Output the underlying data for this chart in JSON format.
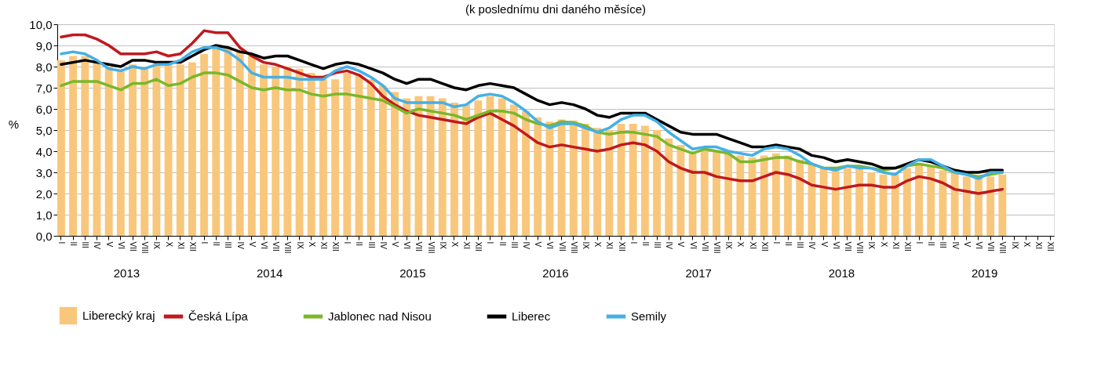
{
  "chart_data": {
    "type": "bar",
    "subtitle": "(k poslednímu dni daného měsíce)",
    "ylabel": "%",
    "categories": [
      "I",
      "II",
      "III",
      "IV",
      "V",
      "VI",
      "VII",
      "VIII",
      "IX",
      "X",
      "XI",
      "XII",
      "I",
      "II",
      "III",
      "IV",
      "V",
      "VI",
      "VII",
      "VIII",
      "IX",
      "X",
      "XI",
      "XII",
      "I",
      "II",
      "III",
      "IV",
      "V",
      "VI",
      "VII",
      "VIII",
      "IX",
      "X",
      "XI",
      "XII",
      "I",
      "II",
      "III",
      "IV",
      "V",
      "VI",
      "VII",
      "VIII",
      "IX",
      "X",
      "XI",
      "XII",
      "I",
      "II",
      "III",
      "IV",
      "V",
      "VI",
      "VII",
      "VIII",
      "IX",
      "X",
      "XI",
      "XII",
      "I",
      "II",
      "III",
      "IV",
      "V",
      "VI",
      "VII",
      "VIII",
      "IX",
      "X",
      "XI",
      "XII",
      "I",
      "II",
      "III",
      "IV",
      "V",
      "VI",
      "VII",
      "VIII",
      "IX",
      "X",
      "XI",
      "XII"
    ],
    "series": [
      {
        "name": "Liberecký kraj",
        "color": "#f9c77b",
        "values": [
          8.3,
          8.5,
          8.5,
          8.2,
          8.0,
          7.8,
          8.1,
          8.0,
          8.1,
          8.1,
          8.1,
          8.2,
          8.6,
          8.9,
          8.9,
          8.8,
          8.5,
          8.1,
          8.0,
          8.0,
          7.9,
          7.7,
          7.4,
          7.4,
          7.7,
          7.6,
          7.4,
          7.1,
          6.8,
          6.5,
          6.6,
          6.6,
          6.5,
          6.3,
          6.2,
          6.4,
          6.6,
          6.5,
          6.2,
          5.9,
          5.6,
          5.4,
          5.5,
          5.45,
          5.3,
          5.1,
          5.0,
          5.3,
          5.3,
          5.2,
          5.0,
          4.6,
          4.3,
          4.0,
          4.1,
          4.0,
          3.9,
          3.8,
          3.7,
          3.8,
          3.9,
          3.8,
          3.6,
          3.4,
          3.2,
          3.1,
          3.2,
          3.2,
          3.0,
          2.9,
          2.9,
          3.2,
          3.4,
          3.3,
          3.1,
          3.0,
          2.8,
          2.7,
          2.8,
          2.9,
          null,
          null,
          null,
          null
        ]
      },
      {
        "name": "Česká Lípa",
        "type": "line",
        "color": "#c0191e",
        "values": [
          9.4,
          9.5,
          9.5,
          9.3,
          9.0,
          8.6,
          8.6,
          8.6,
          8.7,
          8.5,
          8.6,
          9.1,
          9.7,
          9.6,
          9.6,
          8.9,
          8.5,
          8.2,
          8.1,
          7.9,
          7.7,
          7.5,
          7.5,
          7.7,
          7.8,
          7.6,
          7.2,
          6.6,
          6.2,
          5.9,
          5.7,
          5.6,
          5.5,
          5.4,
          5.3,
          5.6,
          5.8,
          5.5,
          5.2,
          4.8,
          4.4,
          4.2,
          4.3,
          4.2,
          4.1,
          4.0,
          4.1,
          4.3,
          4.4,
          4.3,
          4.0,
          3.5,
          3.2,
          3.0,
          3.0,
          2.8,
          2.7,
          2.6,
          2.6,
          2.8,
          3.0,
          2.9,
          2.7,
          2.4,
          2.3,
          2.2,
          2.3,
          2.4,
          2.4,
          2.3,
          2.3,
          2.6,
          2.8,
          2.7,
          2.5,
          2.2,
          2.1,
          2.0,
          2.1,
          2.2,
          null,
          null,
          null,
          null
        ]
      },
      {
        "name": "Jablonec nad Nisou",
        "type": "line",
        "color": "#7ab82a",
        "values": [
          7.1,
          7.3,
          7.3,
          7.3,
          7.1,
          6.9,
          7.2,
          7.2,
          7.4,
          7.1,
          7.2,
          7.5,
          7.7,
          7.7,
          7.6,
          7.3,
          7.0,
          6.9,
          7.0,
          6.9,
          6.9,
          6.7,
          6.6,
          6.7,
          6.7,
          6.6,
          6.5,
          6.4,
          6.1,
          5.8,
          6.0,
          5.9,
          5.8,
          5.7,
          5.5,
          5.7,
          5.9,
          5.9,
          5.8,
          5.5,
          5.3,
          5.2,
          5.4,
          5.35,
          5.2,
          4.9,
          4.8,
          4.9,
          4.9,
          4.8,
          4.7,
          4.3,
          4.1,
          3.9,
          4.1,
          4.0,
          3.9,
          3.5,
          3.5,
          3.6,
          3.7,
          3.7,
          3.5,
          3.4,
          3.2,
          3.2,
          3.3,
          3.3,
          3.2,
          3.1,
          3.2,
          3.3,
          3.4,
          3.3,
          3.2,
          3.0,
          2.9,
          2.8,
          2.9,
          3.0,
          null,
          null,
          null,
          null
        ]
      },
      {
        "name": "Liberec",
        "type": "line",
        "color": "#000000",
        "values": [
          8.1,
          8.2,
          8.3,
          8.2,
          8.1,
          8.0,
          8.3,
          8.3,
          8.2,
          8.2,
          8.2,
          8.5,
          8.8,
          9.0,
          8.9,
          8.7,
          8.6,
          8.4,
          8.5,
          8.5,
          8.3,
          8.1,
          7.9,
          8.1,
          8.2,
          8.1,
          7.9,
          7.7,
          7.4,
          7.2,
          7.4,
          7.4,
          7.2,
          7.0,
          6.9,
          7.1,
          7.2,
          7.1,
          7.0,
          6.7,
          6.4,
          6.2,
          6.3,
          6.2,
          6.0,
          5.7,
          5.6,
          5.8,
          5.8,
          5.8,
          5.5,
          5.2,
          4.9,
          4.8,
          4.8,
          4.8,
          4.6,
          4.4,
          4.2,
          4.2,
          4.3,
          4.2,
          4.1,
          3.8,
          3.7,
          3.5,
          3.6,
          3.5,
          3.4,
          3.2,
          3.2,
          3.4,
          3.6,
          3.5,
          3.3,
          3.1,
          3.0,
          3.0,
          3.1,
          3.1,
          null,
          null,
          null,
          null
        ]
      },
      {
        "name": "Semily",
        "type": "line",
        "color": "#45b0e6",
        "values": [
          8.6,
          8.7,
          8.6,
          8.3,
          7.9,
          7.8,
          8.0,
          7.9,
          8.1,
          8.1,
          8.3,
          8.7,
          8.9,
          8.9,
          8.7,
          8.3,
          7.7,
          7.5,
          7.5,
          7.5,
          7.4,
          7.4,
          7.4,
          7.8,
          8.0,
          7.8,
          7.5,
          7.1,
          6.5,
          6.3,
          6.3,
          6.3,
          6.3,
          6.1,
          6.2,
          6.6,
          6.7,
          6.6,
          6.3,
          5.9,
          5.4,
          5.1,
          5.3,
          5.3,
          5.1,
          4.9,
          5.1,
          5.5,
          5.7,
          5.7,
          5.4,
          4.9,
          4.5,
          4.1,
          4.2,
          4.2,
          4.0,
          3.9,
          3.8,
          4.1,
          4.2,
          4.1,
          3.8,
          3.4,
          3.2,
          3.1,
          3.3,
          3.2,
          3.2,
          3.0,
          2.9,
          3.3,
          3.6,
          3.6,
          3.3,
          3.0,
          2.9,
          2.7,
          3.0,
          3.0,
          null,
          null,
          null,
          null
        ]
      }
    ],
    "ylim": [
      0,
      10
    ],
    "yticks": [
      {
        "value": 0,
        "label": "0,0"
      },
      {
        "value": 1,
        "label": "1,0"
      },
      {
        "value": 2,
        "label": "2,0"
      },
      {
        "value": 3,
        "label": "3,0"
      },
      {
        "value": 4,
        "label": "4,0"
      },
      {
        "value": 5,
        "label": "5,0"
      },
      {
        "value": 6,
        "label": "6,0"
      },
      {
        "value": 7,
        "label": "7,0"
      },
      {
        "value": 8,
        "label": "8,0"
      },
      {
        "value": 9,
        "label": "9,0"
      },
      {
        "value": 10,
        "label": "10,0"
      }
    ],
    "annotations": [
      "2013",
      "2014",
      "2015",
      "2016",
      "2017",
      "2018",
      "2019"
    ],
    "grid": "y",
    "legend": "bottom"
  }
}
